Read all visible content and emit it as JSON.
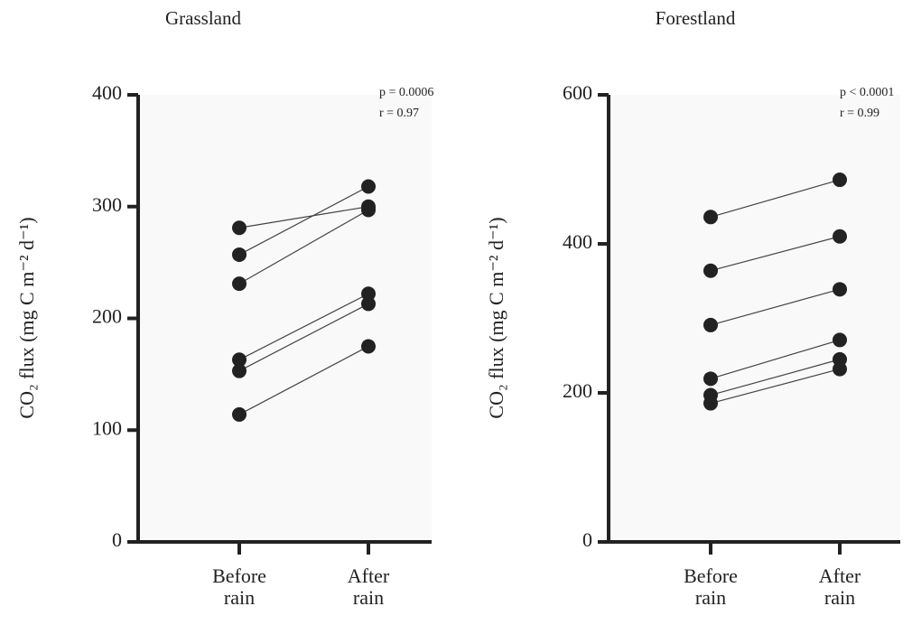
{
  "chart_data": [
    {
      "type": "paired",
      "title": "Grassland",
      "y_label": "CO₂ flux (mg C m⁻² d⁻¹)",
      "categories": [
        "Before rain",
        "After rain"
      ],
      "annotations": [
        "p = 0.0006",
        "r = 0.97"
      ],
      "ylim": [
        0,
        400
      ],
      "yticks": [
        0,
        100,
        200,
        300,
        400
      ],
      "color": "#222222",
      "series": [
        {
          "values": [
            281,
            300
          ]
        },
        {
          "values": [
            257,
            318
          ]
        },
        {
          "values": [
            231,
            297
          ]
        },
        {
          "values": [
            163,
            222
          ]
        },
        {
          "values": [
            153,
            213
          ]
        },
        {
          "values": [
            114,
            175
          ]
        }
      ]
    },
    {
      "type": "paired",
      "title": "Forestland",
      "y_label": "CO₂ flux (mg C m⁻² d⁻¹)",
      "categories": [
        "Before rain",
        "After rain"
      ],
      "annotations": [
        "p < 0.0001",
        "r = 0.99"
      ],
      "ylim": [
        0,
        600
      ],
      "yticks": [
        0,
        200,
        400,
        600
      ],
      "color": "#222222",
      "series": [
        {
          "values": [
            436,
            486
          ]
        },
        {
          "values": [
            364,
            410
          ]
        },
        {
          "values": [
            291,
            339
          ]
        },
        {
          "values": [
            219,
            271
          ]
        },
        {
          "values": [
            197,
            245
          ]
        },
        {
          "values": [
            186,
            232
          ]
        }
      ]
    }
  ]
}
